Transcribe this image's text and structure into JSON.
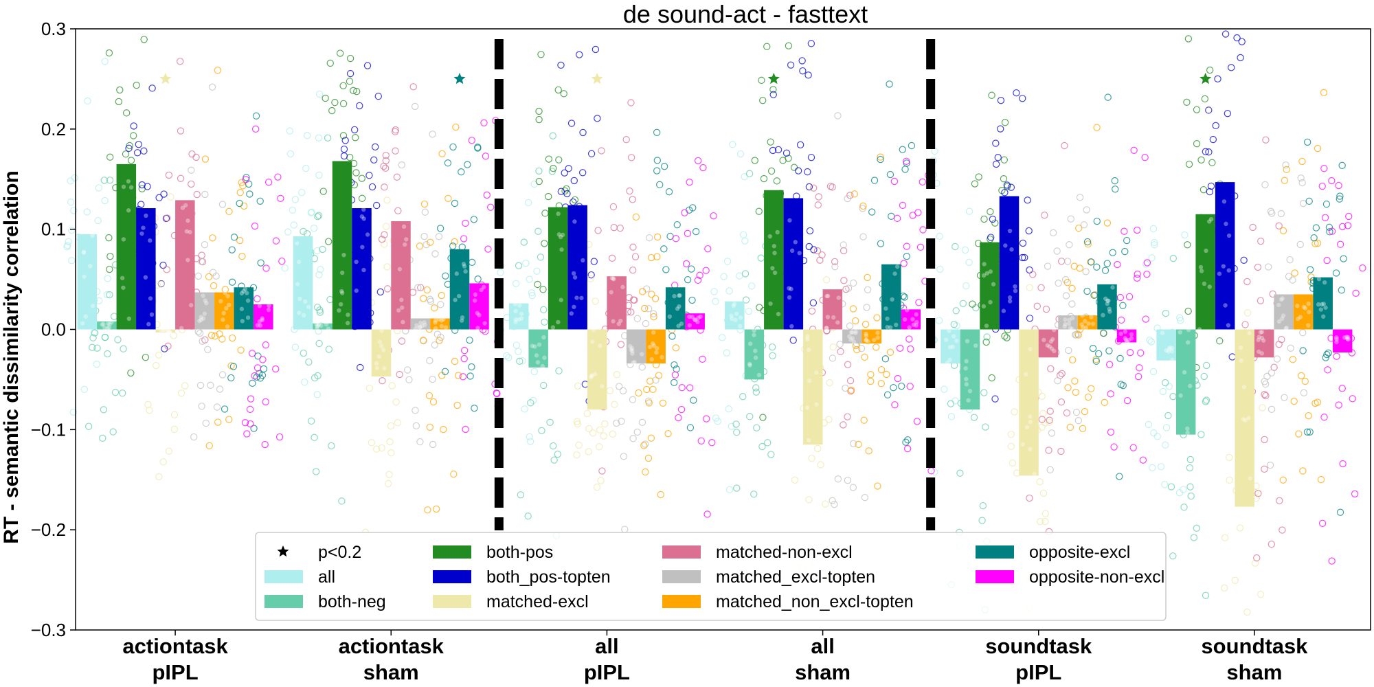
{
  "chart_data": {
    "type": "bar",
    "title": "de sound-act - fasttext",
    "ylabel": "RT - semantic dissimilarity correlation",
    "ylim": [
      -0.3,
      0.3
    ],
    "yticks": [
      -0.3,
      -0.2,
      -0.1,
      0.0,
      0.1,
      0.2,
      0.3
    ],
    "ytick_labels": [
      "−0.3",
      "−0.2",
      "−0.1",
      "0.0",
      "0.1",
      "0.2",
      "0.3"
    ],
    "categories": [
      {
        "line1": "actiontask",
        "line2": "pIPL"
      },
      {
        "line1": "actiontask",
        "line2": "sham"
      },
      {
        "line1": "all",
        "line2": "pIPL"
      },
      {
        "line1": "all",
        "line2": "sham"
      },
      {
        "line1": "soundtask",
        "line2": "pIPL"
      },
      {
        "line1": "soundtask",
        "line2": "sham"
      }
    ],
    "series": [
      {
        "name": "all",
        "color": "#afeeee",
        "values": [
          0.095,
          0.093,
          0.026,
          0.028,
          -0.034,
          -0.031
        ]
      },
      {
        "name": "both-neg",
        "color": "#66cdaa",
        "values": [
          0.008,
          0.006,
          -0.038,
          -0.05,
          -0.08,
          -0.105
        ]
      },
      {
        "name": "both-pos",
        "color": "#228b22",
        "values": [
          0.165,
          0.168,
          0.122,
          0.139,
          0.087,
          0.115
        ]
      },
      {
        "name": "both_pos-topten",
        "color": "#0000cd",
        "values": [
          0.121,
          0.121,
          0.124,
          0.131,
          0.133,
          0.147
        ]
      },
      {
        "name": "matched-excl",
        "color": "#eee8aa",
        "values": [
          -0.003,
          -0.047,
          -0.08,
          -0.115,
          -0.146,
          -0.177
        ]
      },
      {
        "name": "matched-non-excl",
        "color": "#db7093",
        "values": [
          0.129,
          0.108,
          0.053,
          0.04,
          -0.028,
          -0.028
        ]
      },
      {
        "name": "matched_excl-topten",
        "color": "#c0c0c0",
        "values": [
          0.037,
          0.011,
          -0.034,
          -0.014,
          0.014,
          0.035
        ]
      },
      {
        "name": "matched_non_excl-topten",
        "color": "#ffa500",
        "values": [
          0.037,
          0.011,
          -0.034,
          -0.014,
          0.014,
          0.035
        ]
      },
      {
        "name": "opposite-excl",
        "color": "#008080",
        "values": [
          0.042,
          0.08,
          0.042,
          0.065,
          0.045,
          0.052
        ]
      },
      {
        "name": "opposite-non-excl",
        "color": "#ff00ff",
        "values": [
          0.025,
          0.046,
          0.016,
          0.02,
          -0.013,
          -0.023
        ]
      }
    ],
    "significance_marker": {
      "label": "p<0.2",
      "y": 0.25
    },
    "significant_bars": [
      {
        "category": 0,
        "series": "matched-excl"
      },
      {
        "category": 1,
        "series": "opposite-excl"
      },
      {
        "category": 2,
        "series": "matched-excl"
      },
      {
        "category": 3,
        "series": "both-pos"
      },
      {
        "category": 5,
        "series": "both-pos"
      }
    ],
    "group_dividers_after": [
      1,
      3
    ],
    "legend": {
      "position": "lower-center",
      "columns": [
        [
          "p<0.2",
          "all",
          "both-neg"
        ],
        [
          "both-pos",
          "both_pos-topten",
          "matched-excl"
        ],
        [
          "matched-non-excl",
          "matched_excl-topten",
          "matched_non_excl-topten"
        ],
        [
          "opposite-excl",
          "opposite-non-excl"
        ]
      ]
    },
    "scatter_points": "individual subject values shown as jittered open circles around each bar"
  }
}
